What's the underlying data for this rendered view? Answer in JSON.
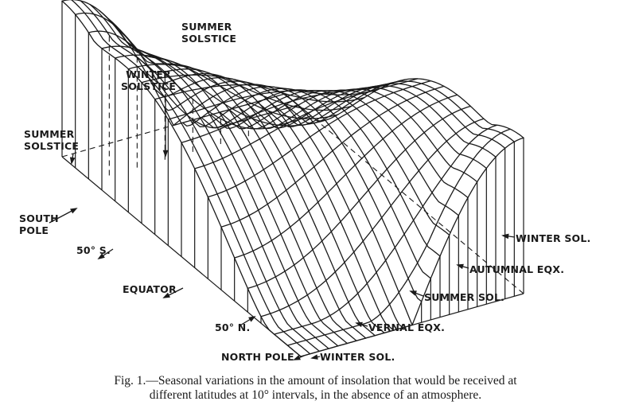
{
  "labels": {
    "summer_solstice_top": [
      "SUMMER",
      "SOLSTICE"
    ],
    "winter_solstice": [
      "WINTER",
      "SOLSTICE"
    ],
    "summer_solstice_left": [
      "SUMMER",
      "SOLSTICE"
    ],
    "south_pole": [
      "SOUTH",
      "POLE"
    ],
    "lat_50s": "50° S.",
    "equator": "EQUATOR",
    "lat_50n": "50° N.",
    "north_pole": "NORTH POLE",
    "winter_sol_bottom": "WINTER SOL.",
    "vernal_eqx": "VERNAL EQX.",
    "summer_sol": "SUMMER SOL.",
    "autumnal_eqx": "AUTUMNAL EQX.",
    "winter_sol_right": "WINTER SOL."
  },
  "caption": {
    "line1": "Fig. 1.—Seasonal variations in the amount of insolation that would be received at",
    "line2": "different latitudes at 10° intervals, in the absence of an atmosphere."
  },
  "colors": {
    "ink": "#1a1a1a",
    "background": "#ffffff"
  }
}
